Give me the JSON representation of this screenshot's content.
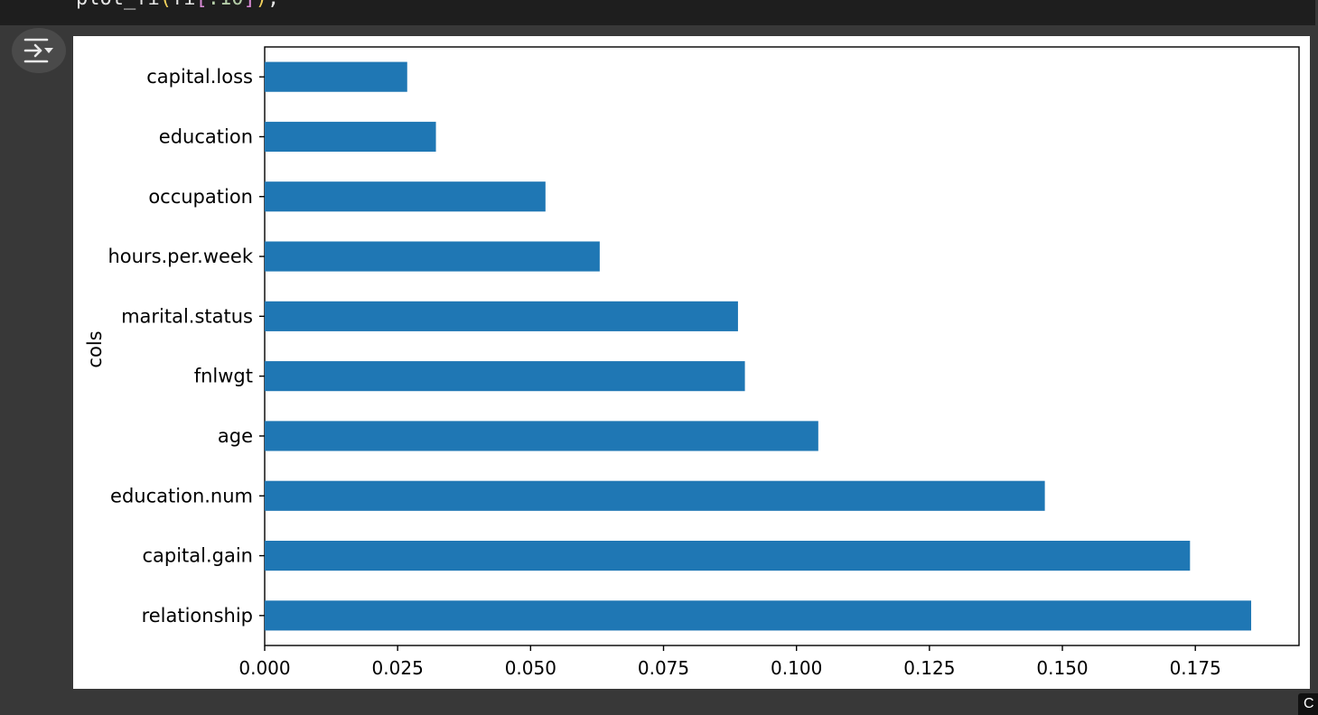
{
  "code": {
    "fn": "plot_fi",
    "open_paren": "(",
    "arg": "fi",
    "open_bracket": "[",
    "slice": ":10",
    "close_bracket": "]",
    "close_paren": ")",
    "terminator": ";"
  },
  "toolbar": {
    "output_toggle_icon": "output-toggle-icon"
  },
  "corner_badge": "C",
  "chart_data": {
    "type": "bar",
    "orientation": "horizontal",
    "categories": [
      "relationship",
      "capital.gain",
      "education.num",
      "age",
      "fnlwgt",
      "marital.status",
      "hours.per.week",
      "occupation",
      "education",
      "capital.loss"
    ],
    "values": [
      0.1855,
      0.174,
      0.1467,
      0.1041,
      0.0903,
      0.089,
      0.063,
      0.0528,
      0.0322,
      0.0268
    ],
    "title": "",
    "xlabel": "",
    "ylabel": "cols",
    "xlim": [
      0,
      0.1945
    ],
    "xticks": [
      0,
      0.025,
      0.05,
      0.075,
      0.1,
      0.125,
      0.15,
      0.175
    ],
    "xtick_labels": [
      "0.000",
      "0.025",
      "0.050",
      "0.075",
      "0.100",
      "0.125",
      "0.150",
      "0.175"
    ],
    "grid": false,
    "legend": false,
    "bar_color": "#1f77b4"
  }
}
